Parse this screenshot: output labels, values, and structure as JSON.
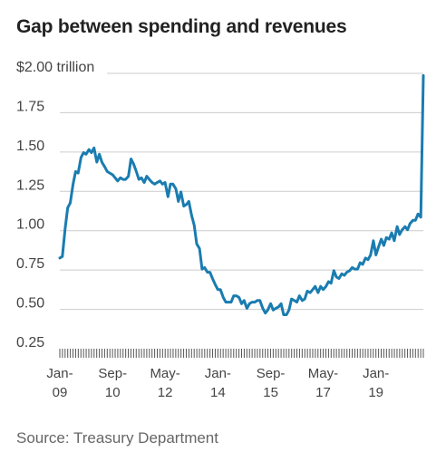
{
  "title": "Gap between spending and revenues",
  "source": "Source: Treasury Department",
  "chart_data": {
    "type": "line",
    "title": "Gap between spending and revenues",
    "xlabel": "",
    "ylabel": "",
    "y_unit_label": "$2.00 trillion",
    "ylim": [
      0.25,
      2.0
    ],
    "yticks": [
      0.25,
      0.5,
      0.75,
      1.0,
      1.25,
      1.5,
      1.75,
      2.0
    ],
    "ytick_labels": [
      "0.25",
      "0.50",
      "0.75",
      "1.00",
      "1.25",
      "1.50",
      "1.75",
      "$2.00 trillion"
    ],
    "xlim": [
      2009.0,
      2020.5
    ],
    "xticks": [
      {
        "x": 2009.0,
        "line1": "Jan-",
        "line2": "09"
      },
      {
        "x": 2010.67,
        "line1": "Sep-",
        "line2": "10"
      },
      {
        "x": 2012.33,
        "line1": "May-",
        "line2": "12"
      },
      {
        "x": 2014.0,
        "line1": "Jan-",
        "line2": "14"
      },
      {
        "x": 2015.67,
        "line1": "Sep-",
        "line2": "15"
      },
      {
        "x": 2017.33,
        "line1": "May-",
        "line2": "17"
      },
      {
        "x": 2019.0,
        "line1": "Jan-",
        "line2": "19"
      }
    ],
    "grid": true,
    "color": "#1a7cb0",
    "series": [
      {
        "name": "",
        "points": [
          [
            2009.0,
            0.78
          ],
          [
            2009.08,
            0.79
          ],
          [
            2009.17,
            0.97
          ],
          [
            2009.25,
            1.1
          ],
          [
            2009.33,
            1.13
          ],
          [
            2009.42,
            1.25
          ],
          [
            2009.5,
            1.33
          ],
          [
            2009.58,
            1.32
          ],
          [
            2009.67,
            1.42
          ],
          [
            2009.75,
            1.45
          ],
          [
            2009.83,
            1.44
          ],
          [
            2009.92,
            1.47
          ],
          [
            2010.0,
            1.45
          ],
          [
            2010.08,
            1.48
          ],
          [
            2010.17,
            1.39
          ],
          [
            2010.25,
            1.44
          ],
          [
            2010.33,
            1.39
          ],
          [
            2010.42,
            1.36
          ],
          [
            2010.5,
            1.33
          ],
          [
            2010.58,
            1.32
          ],
          [
            2010.67,
            1.31
          ],
          [
            2010.75,
            1.29
          ],
          [
            2010.83,
            1.27
          ],
          [
            2010.92,
            1.29
          ],
          [
            2011.0,
            1.28
          ],
          [
            2011.08,
            1.28
          ],
          [
            2011.17,
            1.3
          ],
          [
            2011.25,
            1.41
          ],
          [
            2011.33,
            1.38
          ],
          [
            2011.42,
            1.33
          ],
          [
            2011.5,
            1.28
          ],
          [
            2011.58,
            1.29
          ],
          [
            2011.67,
            1.26
          ],
          [
            2011.75,
            1.3
          ],
          [
            2011.83,
            1.28
          ],
          [
            2011.92,
            1.26
          ],
          [
            2012.0,
            1.25
          ],
          [
            2012.08,
            1.26
          ],
          [
            2012.17,
            1.27
          ],
          [
            2012.25,
            1.25
          ],
          [
            2012.33,
            1.26
          ],
          [
            2012.42,
            1.17
          ],
          [
            2012.5,
            1.25
          ],
          [
            2012.58,
            1.25
          ],
          [
            2012.67,
            1.22
          ],
          [
            2012.75,
            1.14
          ],
          [
            2012.83,
            1.2
          ],
          [
            2012.92,
            1.11
          ],
          [
            2013.0,
            1.12
          ],
          [
            2013.08,
            1.14
          ],
          [
            2013.17,
            1.05
          ],
          [
            2013.25,
            0.99
          ],
          [
            2013.33,
            0.87
          ],
          [
            2013.42,
            0.84
          ],
          [
            2013.5,
            0.71
          ],
          [
            2013.58,
            0.72
          ],
          [
            2013.67,
            0.69
          ],
          [
            2013.75,
            0.69
          ],
          [
            2013.83,
            0.65
          ],
          [
            2013.92,
            0.61
          ],
          [
            2014.0,
            0.58
          ],
          [
            2014.08,
            0.58
          ],
          [
            2014.17,
            0.53
          ],
          [
            2014.25,
            0.5
          ],
          [
            2014.33,
            0.5
          ],
          [
            2014.42,
            0.5
          ],
          [
            2014.5,
            0.54
          ],
          [
            2014.58,
            0.54
          ],
          [
            2014.67,
            0.53
          ],
          [
            2014.75,
            0.49
          ],
          [
            2014.83,
            0.51
          ],
          [
            2014.92,
            0.46
          ],
          [
            2015.0,
            0.49
          ],
          [
            2015.08,
            0.5
          ],
          [
            2015.17,
            0.5
          ],
          [
            2015.25,
            0.51
          ],
          [
            2015.33,
            0.51
          ],
          [
            2015.42,
            0.46
          ],
          [
            2015.5,
            0.43
          ],
          [
            2015.58,
            0.45
          ],
          [
            2015.67,
            0.49
          ],
          [
            2015.75,
            0.45
          ],
          [
            2015.83,
            0.46
          ],
          [
            2015.92,
            0.47
          ],
          [
            2016.0,
            0.49
          ],
          [
            2016.08,
            0.42
          ],
          [
            2016.17,
            0.42
          ],
          [
            2016.25,
            0.45
          ],
          [
            2016.33,
            0.52
          ],
          [
            2016.42,
            0.51
          ],
          [
            2016.5,
            0.5
          ],
          [
            2016.58,
            0.54
          ],
          [
            2016.67,
            0.51
          ],
          [
            2016.75,
            0.52
          ],
          [
            2016.83,
            0.57
          ],
          [
            2016.92,
            0.56
          ],
          [
            2017.0,
            0.58
          ],
          [
            2017.08,
            0.6
          ],
          [
            2017.17,
            0.56
          ],
          [
            2017.25,
            0.6
          ],
          [
            2017.33,
            0.58
          ],
          [
            2017.42,
            0.6
          ],
          [
            2017.5,
            0.63
          ],
          [
            2017.58,
            0.62
          ],
          [
            2017.67,
            0.7
          ],
          [
            2017.75,
            0.66
          ],
          [
            2017.83,
            0.65
          ],
          [
            2017.92,
            0.68
          ],
          [
            2018.0,
            0.67
          ],
          [
            2018.08,
            0.69
          ],
          [
            2018.17,
            0.7
          ],
          [
            2018.25,
            0.72
          ],
          [
            2018.33,
            0.71
          ],
          [
            2018.42,
            0.71
          ],
          [
            2018.5,
            0.75
          ],
          [
            2018.58,
            0.74
          ],
          [
            2018.67,
            0.78
          ],
          [
            2018.75,
            0.77
          ],
          [
            2018.83,
            0.8
          ],
          [
            2018.92,
            0.89
          ],
          [
            2019.0,
            0.8
          ],
          [
            2019.08,
            0.85
          ],
          [
            2019.17,
            0.9
          ],
          [
            2019.25,
            0.86
          ],
          [
            2019.33,
            0.91
          ],
          [
            2019.42,
            0.9
          ],
          [
            2019.5,
            0.94
          ],
          [
            2019.58,
            0.89
          ],
          [
            2019.67,
            0.98
          ],
          [
            2019.75,
            0.93
          ],
          [
            2019.83,
            0.96
          ],
          [
            2019.92,
            0.98
          ],
          [
            2020.0,
            0.96
          ],
          [
            2020.08,
            1.0
          ],
          [
            2020.17,
            1.02
          ],
          [
            2020.25,
            1.02
          ],
          [
            2020.33,
            1.06
          ],
          [
            2020.42,
            1.04
          ],
          [
            2020.5,
            1.94
          ]
        ]
      }
    ]
  }
}
